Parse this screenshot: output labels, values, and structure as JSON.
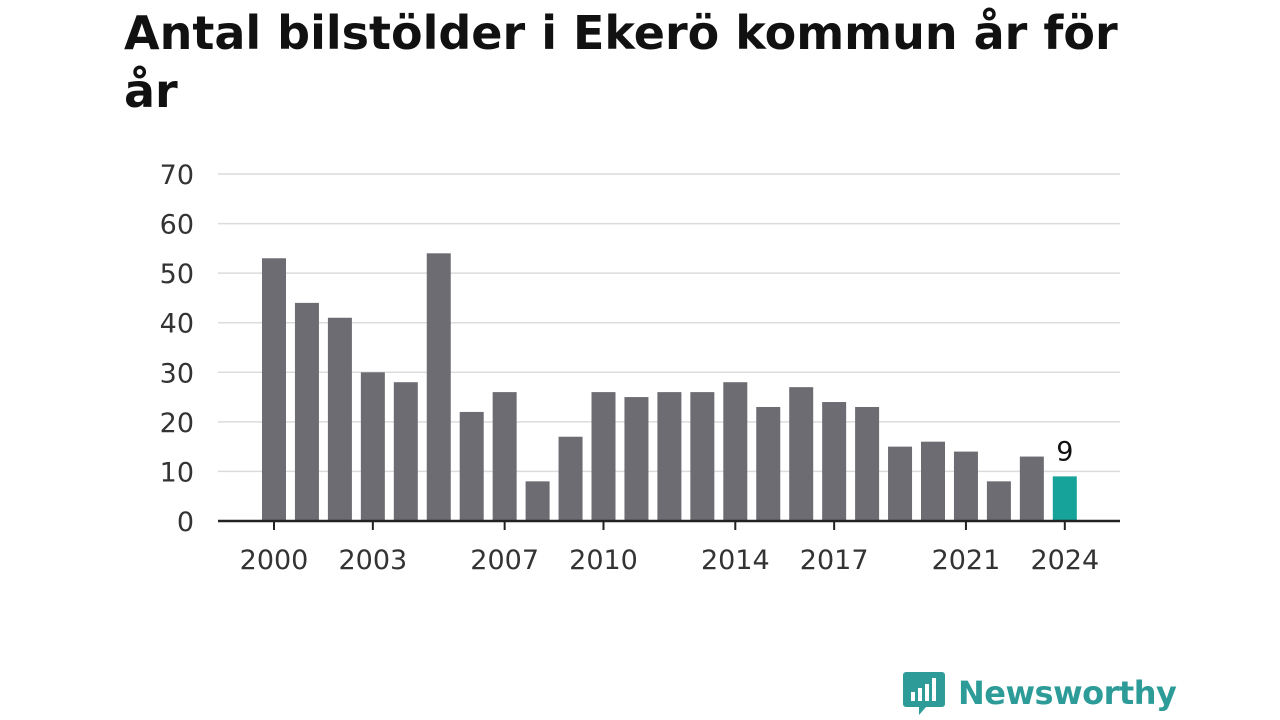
{
  "colors": {
    "bar": "#6d6c72",
    "highlight": "#16a39a",
    "grid": "#dcdcdc",
    "axis": "#222222",
    "text": "#333333",
    "brand": "#2d9c98"
  },
  "chart_data": {
    "type": "bar",
    "title": "Antal bilstölder i Ekerö kommun år för år",
    "x": [
      2000,
      2001,
      2002,
      2003,
      2004,
      2005,
      2006,
      2007,
      2008,
      2009,
      2010,
      2011,
      2012,
      2013,
      2014,
      2015,
      2016,
      2017,
      2018,
      2019,
      2020,
      2021,
      2022,
      2023,
      2024
    ],
    "values": [
      53,
      44,
      41,
      30,
      28,
      54,
      22,
      26,
      8,
      17,
      26,
      25,
      26,
      26,
      28,
      23,
      27,
      24,
      23,
      15,
      16,
      14,
      8,
      13,
      9
    ],
    "x_tick_labels": [
      "2000",
      "2003",
      "2007",
      "2010",
      "2014",
      "2017",
      "2021",
      "2024"
    ],
    "y_ticks": [
      "0",
      "10",
      "20",
      "30",
      "40",
      "50",
      "60",
      "70"
    ],
    "ylim": [
      0,
      70
    ],
    "highlight_year": 2024,
    "highlight_label": "9",
    "xlabel": "",
    "ylabel": "",
    "grid": true
  },
  "brand": {
    "name": "Newsworthy",
    "logo_icon": "bar-chart-speech-bubble-icon"
  }
}
